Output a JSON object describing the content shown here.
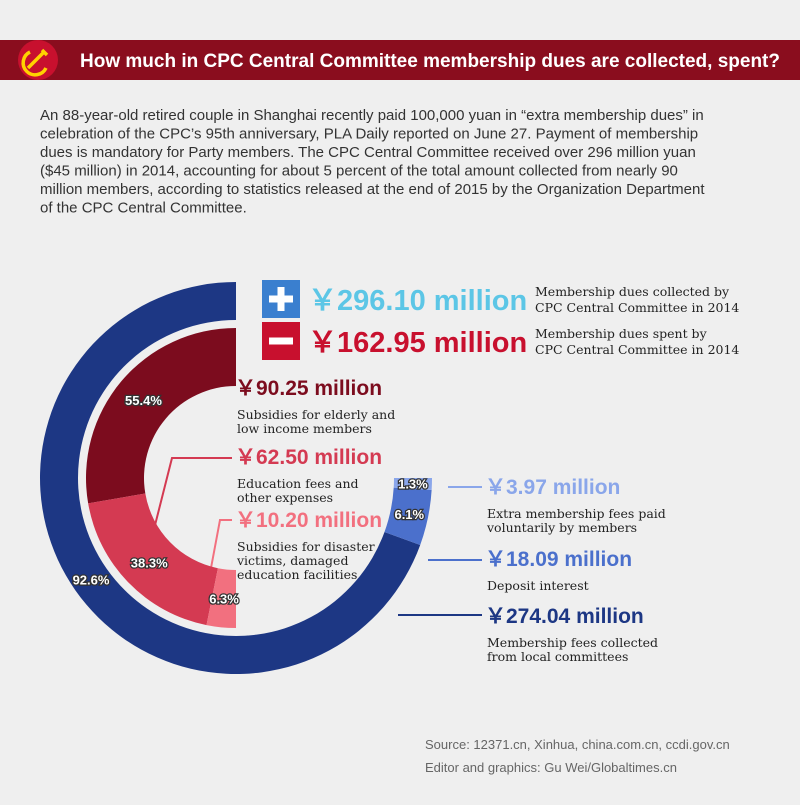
{
  "header": {
    "title": "How much in CPC Central Committee membership dues are collected, spent?"
  },
  "intro": [
    "An 88-year-old retired couple in Shanghai recently paid 100,000 yuan in “extra membership dues” in",
    "celebration of the CPC’s 95th anniversary, PLA Daily reported on June 27. Payment of membership",
    "dues is mandatory for Party members. The CPC Central Committee received over 296 million yuan",
    "($45 million) in 2014, accounting for about 5 percent of the total amount collected from nearly 90",
    "million members, according to statistics released at the end of 2015 by the Organization Department",
    "of the CPC Central Committee."
  ],
  "collected": {
    "total": "￥296.10 million",
    "total_description": [
      "Membership dues collected by",
      "CPC Central Committee in 2014"
    ],
    "total_color": "#5cc6e6",
    "values": [
      92.6,
      6.1,
      1.3
    ],
    "value_labels": [
      "92.6%",
      "6.1%",
      "1.3%"
    ],
    "amounts": [
      "￥274.04 million",
      "￥18.09 million",
      "￥3.97 million"
    ],
    "descriptions": [
      [
        "Membership fees collected",
        "from local committees"
      ],
      [
        "Deposit interest"
      ],
      [
        "Extra membership fees paid",
        "voluntarily by members"
      ]
    ],
    "colors": [
      "#1d3784",
      "#4b70cc",
      "#8aa6ea"
    ]
  },
  "spent": {
    "total": "￥162.95 million",
    "total_description": [
      "Membership dues spent by",
      "CPC Central Committee in 2014"
    ],
    "total_color": "#c8102e",
    "values": [
      55.4,
      38.3,
      6.3
    ],
    "value_labels": [
      "55.4%",
      "38.3%",
      "6.3%"
    ],
    "amounts": [
      "￥90.25 million",
      "￥62.50 million",
      "￥10.20 million"
    ],
    "descriptions": [
      [
        "Subsidies for elderly and",
        "low income members"
      ],
      [
        "Education fees and",
        "other expenses"
      ],
      [
        "Subsidies for disaster",
        "victims, damaged",
        "education facilities"
      ]
    ],
    "colors": [
      "#7c0c1e",
      "#d43a52",
      "#f2707f"
    ]
  },
  "footer": {
    "source": "Source: 12371.cn, Xinhua, china.com.cn, ccdi.gov.cn",
    "credit": "Editor and graphics: Gu Wei/Globaltimes.cn"
  }
}
